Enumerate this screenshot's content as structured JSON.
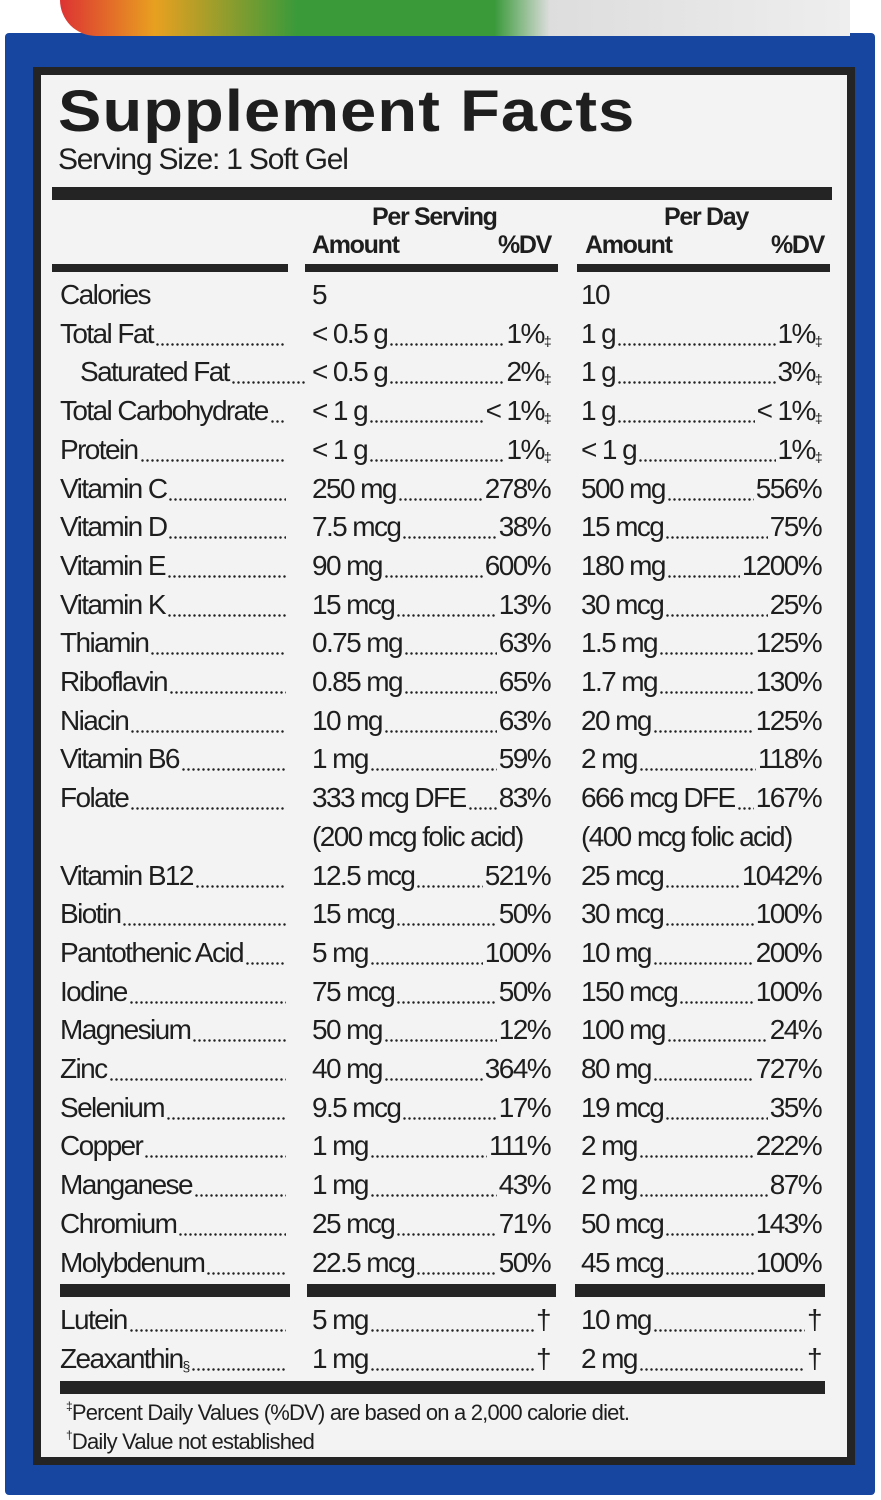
{
  "title": "Supplement Facts",
  "serving_size": "Serving Size: 1 Soft Gel",
  "headers": {
    "per_serving": "Per Serving",
    "per_day": "Per Day",
    "amount": "Amount",
    "dv": "%DV"
  },
  "rows": [
    {
      "name": "Calories",
      "s_amt": "5",
      "s_dv": "",
      "d_amt": "10",
      "d_dv": "",
      "lead": false
    },
    {
      "name": "Total Fat",
      "s_amt": "< 0.5 g",
      "s_dv": "1%",
      "s_mark": "‡",
      "d_amt": "1 g",
      "d_dv": "1%",
      "d_mark": "‡"
    },
    {
      "name": "Saturated Fat",
      "indent": true,
      "s_amt": "< 0.5 g",
      "s_dv": "2%",
      "s_mark": "‡",
      "d_amt": "1 g",
      "d_dv": "3%",
      "d_mark": "‡"
    },
    {
      "name": "Total Carbohydrate",
      "s_amt": "< 1 g",
      "s_dv": "< 1%",
      "s_mark": "‡",
      "d_amt": "1 g",
      "d_dv": "< 1%",
      "d_mark": "‡"
    },
    {
      "name": "Protein",
      "s_amt": "< 1 g",
      "s_dv": "1%",
      "s_mark": "‡",
      "d_amt": "< 1 g",
      "d_dv": "1%",
      "d_mark": "‡"
    },
    {
      "name": "Vitamin C",
      "s_amt": "250 mg",
      "s_dv": "278%",
      "d_amt": "500 mg",
      "d_dv": "556%"
    },
    {
      "name": "Vitamin D",
      "s_amt": "7.5 mcg",
      "s_dv": "38%",
      "d_amt": "15 mcg",
      "d_dv": "75%"
    },
    {
      "name": "Vitamin E",
      "s_amt": "90 mg",
      "s_dv": "600%",
      "d_amt": "180 mg",
      "d_dv": "1200%"
    },
    {
      "name": "Vitamin K",
      "s_amt": "15 mcg",
      "s_dv": "13%",
      "d_amt": "30 mcg",
      "d_dv": "25%"
    },
    {
      "name": "Thiamin",
      "s_amt": "0.75 mg",
      "s_dv": "63%",
      "d_amt": "1.5 mg",
      "d_dv": "125%"
    },
    {
      "name": "Riboflavin",
      "s_amt": "0.85 mg",
      "s_dv": "65%",
      "d_amt": "1.7 mg",
      "d_dv": "130%"
    },
    {
      "name": "Niacin",
      "s_amt": "10 mg",
      "s_dv": "63%",
      "d_amt": "20 mg",
      "d_dv": "125%"
    },
    {
      "name": "Vitamin B6",
      "s_amt": "1 mg",
      "s_dv": "59%",
      "d_amt": "2 mg",
      "d_dv": "118%"
    },
    {
      "name": "Folate",
      "s_amt": "333 mcg DFE",
      "s_dv": "83%",
      "d_amt": "666 mcg DFE",
      "d_dv": "167%",
      "s_note": "(200 mcg folic acid)",
      "d_note": "(400 mcg folic acid)"
    },
    {
      "name": "Vitamin B12",
      "s_amt": "12.5 mcg",
      "s_dv": "521%",
      "d_amt": "25 mcg",
      "d_dv": "1042%"
    },
    {
      "name": "Biotin",
      "s_amt": "15 mcg",
      "s_dv": "50%",
      "d_amt": "30 mcg",
      "d_dv": "100%"
    },
    {
      "name": "Pantothenic Acid",
      "s_amt": "5 mg",
      "s_dv": "100%",
      "d_amt": "10 mg",
      "d_dv": "200%"
    },
    {
      "name": "Iodine",
      "s_amt": "75 mcg",
      "s_dv": "50%",
      "d_amt": "150 mcg",
      "d_dv": "100%"
    },
    {
      "name": "Magnesium",
      "s_amt": "50 mg",
      "s_dv": "12%",
      "d_amt": "100 mg",
      "d_dv": "24%"
    },
    {
      "name": "Zinc",
      "s_amt": "40 mg",
      "s_dv": "364%",
      "d_amt": "80 mg",
      "d_dv": "727%"
    },
    {
      "name": "Selenium",
      "s_amt": "9.5 mcg",
      "s_dv": "17%",
      "d_amt": "19 mcg",
      "d_dv": "35%"
    },
    {
      "name": "Copper",
      "s_amt": "1 mg",
      "s_dv": "111%",
      "d_amt": "2 mg",
      "d_dv": "222%"
    },
    {
      "name": "Manganese",
      "s_amt": "1 mg",
      "s_dv": "43%",
      "d_amt": "2 mg",
      "d_dv": "87%"
    },
    {
      "name": "Chromium",
      "s_amt": "25 mcg",
      "s_dv": "71%",
      "d_amt": "50 mcg",
      "d_dv": "143%"
    },
    {
      "name": "Molybdenum",
      "s_amt": "22.5 mcg",
      "s_dv": "50%",
      "d_amt": "45 mcg",
      "d_dv": "100%"
    }
  ],
  "other_rows": [
    {
      "name": "Lutein",
      "s_amt": "5 mg",
      "s_dv": "†",
      "d_amt": "10 mg",
      "d_dv": "†"
    },
    {
      "name": "Zeaxanthin",
      "name_mark": "§",
      "s_amt": "1 mg",
      "s_dv": "†",
      "d_amt": "2 mg",
      "d_dv": "†"
    }
  ],
  "footnotes": [
    {
      "mark": "‡",
      "text": "Percent Daily Values (%DV) are based on a 2,000 calorie diet."
    },
    {
      "mark": "†",
      "text": "Daily Value not established"
    }
  ],
  "colors": {
    "box_blue": "#1646a0",
    "bars": "#242424",
    "label_bg": "#f3f3f3"
  }
}
